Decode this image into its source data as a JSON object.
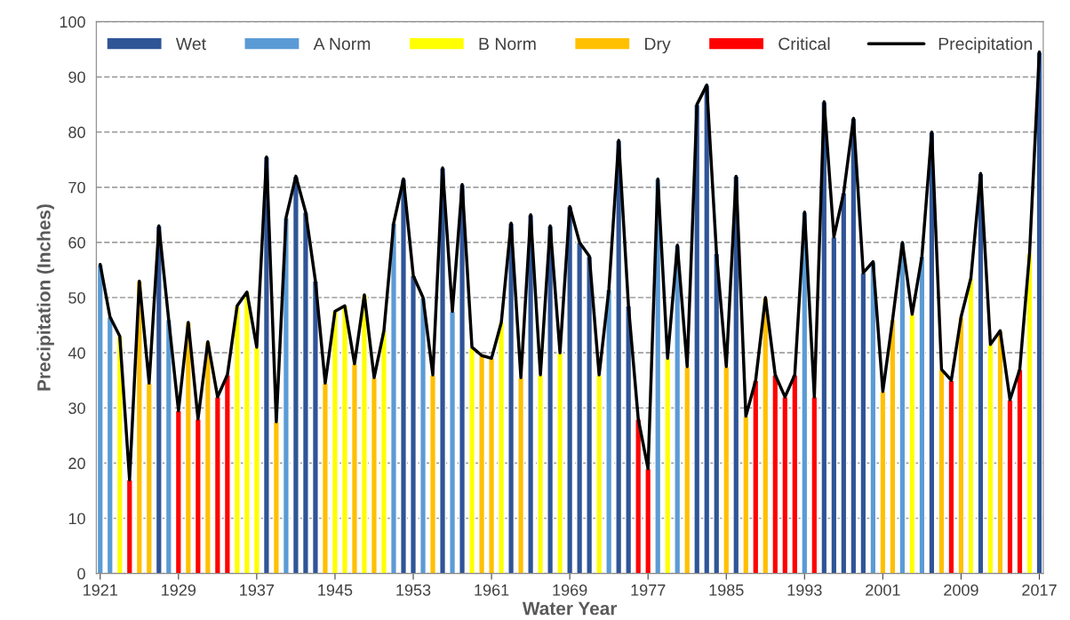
{
  "chart_data": {
    "type": "bar",
    "xlabel": "Water Year",
    "ylabel": "Precipitation (Inches)",
    "x": [
      1921,
      1922,
      1923,
      1924,
      1925,
      1926,
      1927,
      1928,
      1929,
      1930,
      1931,
      1932,
      1933,
      1934,
      1935,
      1936,
      1937,
      1938,
      1939,
      1940,
      1941,
      1942,
      1943,
      1944,
      1945,
      1946,
      1947,
      1948,
      1949,
      1950,
      1951,
      1952,
      1953,
      1954,
      1955,
      1956,
      1957,
      1958,
      1959,
      1960,
      1961,
      1962,
      1963,
      1964,
      1965,
      1966,
      1967,
      1968,
      1969,
      1970,
      1971,
      1972,
      1973,
      1974,
      1975,
      1976,
      1977,
      1978,
      1979,
      1980,
      1981,
      1982,
      1983,
      1984,
      1985,
      1986,
      1987,
      1988,
      1989,
      1990,
      1991,
      1992,
      1993,
      1994,
      1995,
      1996,
      1997,
      1998,
      1999,
      2000,
      2001,
      2002,
      2003,
      2004,
      2005,
      2006,
      2007,
      2008,
      2009,
      2010,
      2011,
      2012,
      2013,
      2014,
      2015,
      2016,
      2017
    ],
    "series": [
      {
        "name": "Wet",
        "color": "#2f5597",
        "values": [
          null,
          null,
          null,
          null,
          null,
          null,
          63,
          null,
          null,
          null,
          null,
          null,
          null,
          null,
          null,
          null,
          null,
          75.5,
          null,
          null,
          72,
          65.5,
          53,
          null,
          null,
          null,
          null,
          null,
          null,
          null,
          null,
          71.5,
          54,
          null,
          null,
          73.5,
          null,
          70.5,
          null,
          null,
          null,
          null,
          63.5,
          null,
          65,
          null,
          63,
          null,
          66.5,
          60,
          57.5,
          null,
          null,
          78.5,
          48.5,
          null,
          null,
          null,
          null,
          null,
          null,
          85,
          88.5,
          58,
          null,
          72,
          null,
          null,
          null,
          null,
          null,
          null,
          null,
          null,
          85.5,
          61,
          69,
          82.5,
          54.5,
          null,
          null,
          null,
          null,
          null,
          null,
          80,
          null,
          null,
          null,
          null,
          72.5,
          null,
          null,
          null,
          null,
          null,
          94.5
        ]
      },
      {
        "name": "A Norm",
        "color": "#5b9bd5",
        "values": [
          56,
          46.5,
          null,
          null,
          null,
          null,
          null,
          46,
          null,
          null,
          null,
          null,
          null,
          null,
          null,
          null,
          null,
          null,
          null,
          64.5,
          null,
          null,
          null,
          null,
          null,
          null,
          null,
          null,
          null,
          null,
          63.5,
          null,
          null,
          50,
          null,
          null,
          47.5,
          null,
          null,
          null,
          null,
          null,
          null,
          null,
          null,
          null,
          null,
          null,
          null,
          null,
          null,
          null,
          51.5,
          null,
          null,
          null,
          null,
          71.5,
          null,
          59.5,
          null,
          null,
          null,
          null,
          null,
          null,
          null,
          null,
          null,
          null,
          null,
          null,
          65.5,
          null,
          null,
          null,
          null,
          null,
          null,
          56.5,
          null,
          null,
          60,
          null,
          57.5,
          null,
          null,
          null,
          null,
          null,
          null,
          null,
          null,
          null,
          null,
          null,
          null
        ]
      },
      {
        "name": "B Norm",
        "color": "#ffff00",
        "values": [
          null,
          null,
          43,
          null,
          null,
          null,
          null,
          null,
          null,
          null,
          null,
          null,
          null,
          null,
          48.5,
          51,
          41,
          null,
          null,
          null,
          null,
          null,
          null,
          null,
          47.5,
          48.5,
          null,
          50.5,
          null,
          44,
          null,
          null,
          null,
          null,
          null,
          null,
          null,
          null,
          41,
          null,
          null,
          45.5,
          null,
          null,
          null,
          36,
          null,
          40,
          null,
          null,
          null,
          36,
          null,
          null,
          null,
          null,
          null,
          null,
          39,
          null,
          null,
          null,
          null,
          null,
          null,
          null,
          null,
          null,
          null,
          null,
          null,
          null,
          null,
          null,
          null,
          null,
          null,
          null,
          null,
          null,
          null,
          null,
          null,
          47,
          null,
          null,
          null,
          null,
          null,
          53.5,
          null,
          41.5,
          null,
          null,
          null,
          58,
          null
        ]
      },
      {
        "name": "Dry",
        "color": "#ffc000",
        "values": [
          null,
          null,
          null,
          null,
          53,
          34.5,
          null,
          null,
          null,
          45.5,
          null,
          42,
          null,
          null,
          null,
          null,
          null,
          null,
          27.5,
          null,
          null,
          null,
          null,
          34.5,
          null,
          null,
          38,
          null,
          35.5,
          null,
          null,
          null,
          null,
          null,
          36,
          null,
          null,
          null,
          null,
          39.5,
          39,
          null,
          null,
          35.5,
          null,
          null,
          null,
          null,
          null,
          null,
          null,
          null,
          null,
          null,
          null,
          null,
          null,
          null,
          null,
          null,
          37.5,
          null,
          null,
          null,
          37.5,
          null,
          28.5,
          null,
          50,
          null,
          null,
          null,
          null,
          null,
          null,
          null,
          null,
          null,
          null,
          null,
          33,
          46,
          null,
          null,
          null,
          null,
          37,
          null,
          46.5,
          null,
          null,
          null,
          44,
          null,
          null,
          null,
          null
        ]
      },
      {
        "name": "Critical",
        "color": "#ff0000",
        "values": [
          null,
          null,
          null,
          17,
          null,
          null,
          null,
          null,
          29.5,
          null,
          28,
          null,
          32,
          36,
          null,
          null,
          null,
          null,
          null,
          null,
          null,
          null,
          null,
          null,
          null,
          null,
          null,
          null,
          null,
          null,
          null,
          null,
          null,
          null,
          null,
          null,
          null,
          null,
          null,
          null,
          null,
          null,
          null,
          null,
          null,
          null,
          null,
          null,
          null,
          null,
          null,
          null,
          null,
          null,
          null,
          28,
          19,
          null,
          null,
          null,
          null,
          null,
          null,
          null,
          null,
          null,
          null,
          35,
          null,
          36,
          32,
          36,
          null,
          32,
          null,
          null,
          null,
          null,
          null,
          null,
          null,
          null,
          null,
          null,
          null,
          null,
          null,
          35,
          null,
          null,
          null,
          null,
          null,
          31.5,
          37,
          null,
          null
        ]
      },
      {
        "name": "Precipitation",
        "type": "line",
        "color": "#000000",
        "values": [
          56,
          46.5,
          43,
          17,
          53,
          34.5,
          63,
          46,
          29.5,
          45.5,
          28,
          42,
          32,
          36,
          48.5,
          51,
          41,
          75.5,
          27.5,
          64.5,
          72,
          65.5,
          53,
          34.5,
          47.5,
          48.5,
          38,
          50.5,
          35.5,
          44,
          63.5,
          71.5,
          54,
          50,
          36,
          73.5,
          47.5,
          70.5,
          41,
          39.5,
          39,
          45.5,
          63.5,
          35.5,
          65,
          36,
          63,
          40,
          66.5,
          60,
          57.5,
          36,
          51.5,
          78.5,
          48.5,
          28,
          19,
          71.5,
          39,
          59.5,
          37.5,
          85,
          88.5,
          58,
          37.5,
          72,
          28.5,
          35,
          50,
          36,
          32,
          36,
          65.5,
          32,
          85.5,
          61,
          69,
          82.5,
          54.5,
          56.5,
          33,
          46,
          60,
          47,
          57.5,
          80,
          37,
          35,
          46.5,
          53.5,
          72.5,
          41.5,
          44,
          31.5,
          37,
          58,
          94.5
        ]
      }
    ],
    "xlim": [
      1920.6,
      2017.4
    ],
    "xticks": [
      1921,
      1929,
      1937,
      1945,
      1953,
      1961,
      1969,
      1977,
      1985,
      1993,
      2001,
      2009,
      2017
    ],
    "ylim": [
      0,
      100
    ],
    "yticks": [
      0,
      10,
      20,
      30,
      40,
      50,
      60,
      70,
      80,
      90,
      100
    ],
    "grid": "y",
    "legend": "top",
    "line_style": "solid",
    "marker": "none"
  }
}
